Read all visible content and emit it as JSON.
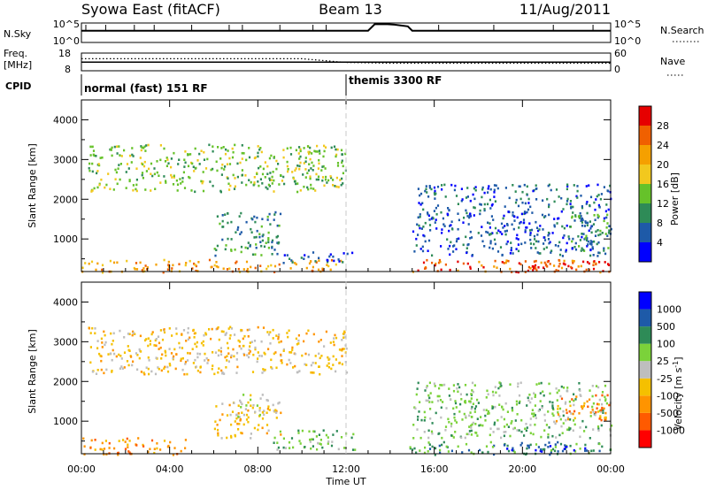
{
  "header": {
    "station": "Syowa East (fitACF)",
    "beam": "Beam 13",
    "date": "11/Aug/2011"
  },
  "top_panels": {
    "nsky_label": "N.Sky",
    "nsky_ticks": [
      "10^5",
      "10^0"
    ],
    "nsearch_label": "N.Search",
    "nsearch_ticks": [
      "10^5",
      "10^0"
    ],
    "freq_label_1": "Freq.",
    "freq_label_2": "[MHz]",
    "freq_ticks": [
      "18",
      "8"
    ],
    "nave_label": "Nave",
    "nave_ticks": [
      "60",
      "0"
    ],
    "cpid_label": "CPID",
    "modes": [
      {
        "name": "normal (fast) 151 RF",
        "start_hour": 0
      },
      {
        "name": "themis 3300 RF",
        "start_hour": 12
      }
    ]
  },
  "colors": {
    "power": [
      "#0000ff",
      "#1e5aa8",
      "#2e8b57",
      "#66c22a",
      "#f2c81e",
      "#f5a000",
      "#f06000",
      "#e60000"
    ],
    "velocity": [
      "#ff0000",
      "#ff5a00",
      "#ff9400",
      "#f5c000",
      "#bebebe",
      "#7bd23a",
      "#2e8b57",
      "#1e5aa8",
      "#0000ff"
    ],
    "dashed_line": "#c8c8c8"
  },
  "chart_data": [
    {
      "type": "line",
      "title": "N.Sky / N.Search",
      "x": [
        0,
        2,
        4,
        6,
        8,
        10,
        12,
        13,
        13.3,
        13.8,
        14.2,
        14.8,
        15,
        16,
        18,
        20,
        22,
        24
      ],
      "series": [
        {
          "name": "N.Sky",
          "values": [
            1200.0,
            1200.0,
            1200.0,
            1200.0,
            1200.0,
            1200.0,
            1200.0,
            1200.0,
            80000.0,
            90000.0,
            60000.0,
            20000.0,
            1200.0,
            1200.0,
            1200.0,
            1200.0,
            1200.0,
            1200.0
          ]
        }
      ],
      "ylim_log": [
        1,
        100000
      ]
    },
    {
      "type": "line",
      "title": "Freq. / Nave",
      "x": [
        0,
        2,
        4,
        6,
        8,
        10,
        12,
        14,
        16,
        18,
        20,
        22,
        24
      ],
      "series": [
        {
          "name": "Freq.",
          "values": [
            12.9,
            12.9,
            12.9,
            12.9,
            12.9,
            12.9,
            12.9,
            12.9,
            12.9,
            12.9,
            12.9,
            12.9,
            12.9
          ]
        },
        {
          "name": "Nave",
          "values": [
            42,
            42,
            42,
            42,
            42,
            42,
            28,
            25,
            25,
            25,
            25,
            25,
            25
          ]
        }
      ],
      "ylim_freq": [
        8,
        18
      ],
      "ylim_nave": [
        0,
        60
      ]
    },
    {
      "type": "heatmap",
      "title": "Power",
      "xlabel": "",
      "ylabel": "Slant Range [km]",
      "colorbar_label": "Power [dB]",
      "colorbar_ticks": [
        "4",
        "8",
        "12",
        "16",
        "20",
        "24",
        "28"
      ],
      "xlim_hours": [
        0,
        24
      ],
      "ylim_km": [
        180,
        4500
      ],
      "yticks": [
        "1000",
        "2000",
        "3000",
        "4000"
      ],
      "regions": [
        {
          "t0": 0.0,
          "t1": 11.8,
          "r0": 180,
          "r1": 500,
          "level": 5
        },
        {
          "t0": 6.0,
          "t1": 9.0,
          "r0": 600,
          "r1": 1700,
          "level": 2
        },
        {
          "t0": 9.0,
          "t1": 12.4,
          "r0": 420,
          "r1": 700,
          "level": 1
        },
        {
          "t0": 0.3,
          "t1": 12.0,
          "r0": 2200,
          "r1": 3400,
          "level": 3
        },
        {
          "t0": 14.8,
          "t1": 24.0,
          "r0": 180,
          "r1": 500,
          "level": 6
        },
        {
          "t0": 19.8,
          "t1": 24.0,
          "r0": 250,
          "r1": 480,
          "level": 7
        },
        {
          "t0": 15.0,
          "t1": 24.0,
          "r0": 600,
          "r1": 2400,
          "level": 1
        },
        {
          "t0": 22.0,
          "t1": 24.0,
          "r0": 700,
          "r1": 1700,
          "level": 2
        }
      ]
    },
    {
      "type": "heatmap",
      "title": "Velocity",
      "xlabel": "Time UT",
      "ylabel": "Slant Range [km]",
      "colorbar_label": "Velocity [m s^-1]",
      "colorbar_ticks": [
        "-1000",
        "-500",
        "-100",
        "-25",
        "25",
        "100",
        "500",
        "1000"
      ],
      "xlim_hours": [
        0,
        24
      ],
      "ylim_km": [
        180,
        4500
      ],
      "yticks": [
        "1000",
        "2000",
        "3000",
        "4000"
      ],
      "xticks": [
        "00:00",
        "04:00",
        "08:00",
        "12:00",
        "16:00",
        "20:00",
        "00:00"
      ],
      "regions": [
        {
          "t0": 0.0,
          "t1": 5.0,
          "r0": 180,
          "r1": 600,
          "level": 2
        },
        {
          "t0": 6.0,
          "t1": 9.0,
          "r0": 600,
          "r1": 1500,
          "level": 3
        },
        {
          "t0": 7.0,
          "t1": 8.5,
          "r0": 1100,
          "r1": 1700,
          "level": 4
        },
        {
          "t0": 8.5,
          "t1": 12.4,
          "r0": 300,
          "r1": 800,
          "level": 5
        },
        {
          "t0": 0.3,
          "t1": 12.0,
          "r0": 2200,
          "r1": 3400,
          "level": 3
        },
        {
          "t0": 14.8,
          "t1": 24.0,
          "r0": 180,
          "r1": 500,
          "level": 6
        },
        {
          "t0": 19.0,
          "t1": 24.0,
          "r0": 250,
          "r1": 450,
          "level": 7
        },
        {
          "t0": 15.0,
          "t1": 24.0,
          "r0": 600,
          "r1": 2000,
          "level": 5
        },
        {
          "t0": 21.5,
          "t1": 24.0,
          "r0": 1000,
          "r1": 1700,
          "level": 2
        }
      ]
    }
  ]
}
